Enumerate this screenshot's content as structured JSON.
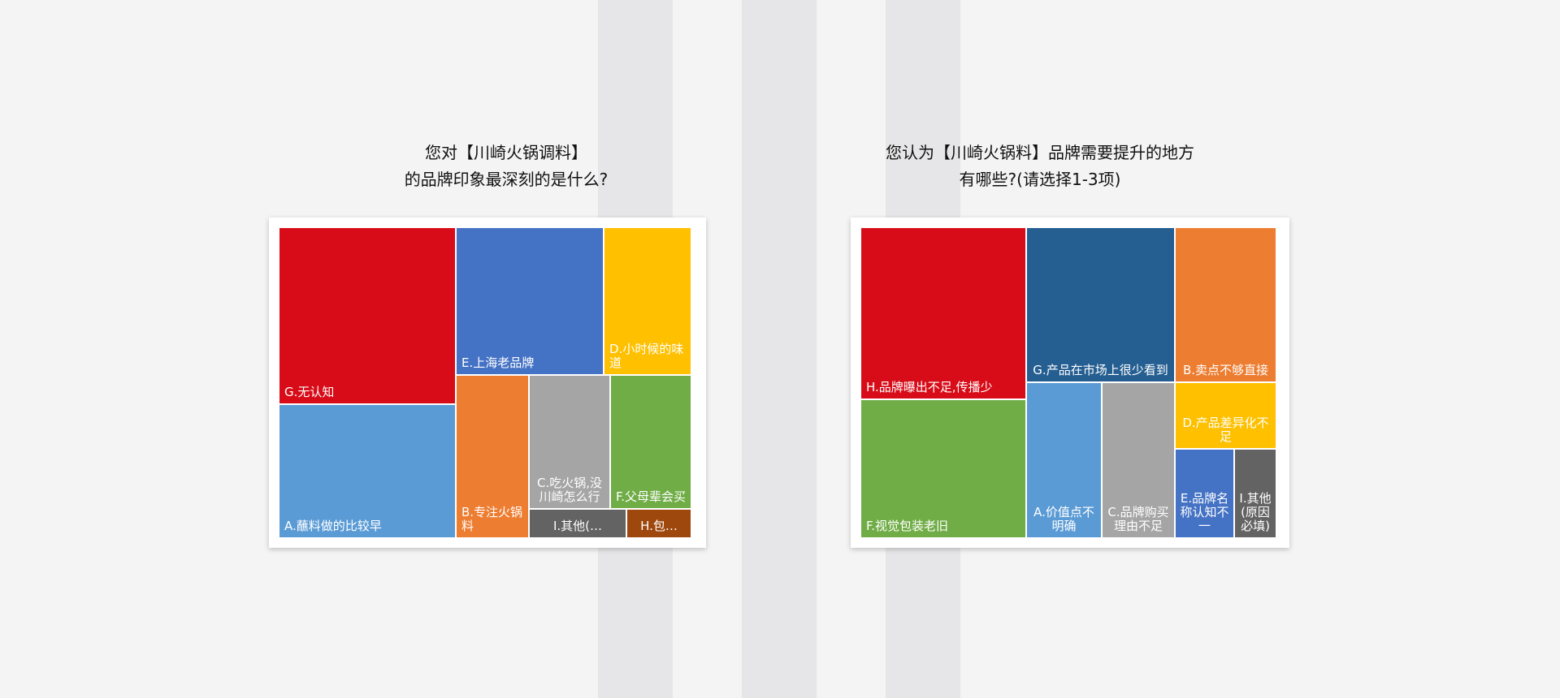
{
  "page": {
    "background": "#f4f4f4",
    "stripe_color": "#e6e6e8"
  },
  "chart_data": [
    {
      "type": "treemap",
      "title": "您对【川崎火锅调料】\n的品牌印象最深刻的是什么?",
      "categories": [
        "G.无认知",
        "A.蘸料做的比较早",
        "E.上海老品牌",
        "D.小时候的味道",
        "B.专注火锅料",
        "C.吃火锅,没川崎怎么行",
        "F.父母辈会买",
        "I.其他(…",
        "H.包…"
      ],
      "values": [
        22.1,
        14.6,
        11.9,
        6.9,
        6.2,
        6.2,
        6.3,
        2.2,
        1.6
      ],
      "tile_colors": [
        "#d80c18",
        "#5b9bd5",
        "#4472c4",
        "#ffc000",
        "#ed7d31",
        "#a5a5a5",
        "#70ad47",
        "#636363",
        "#9e480e"
      ]
    },
    {
      "type": "treemap",
      "title": "您认为【川崎火锅料】品牌需要提升的地方\n有哪些?(请选择1-3项)",
      "categories": [
        "H.品牌曝出不足,传播少",
        "F.视觉包装老旧",
        "G.产品在市场上很少看到",
        "A.价值点不明确",
        "C.品牌购买理由不足",
        "B.卖点不够直接",
        "D.产品差异化不足",
        "E.品牌名称认知不一",
        "I.其他(原因必填)"
      ],
      "values": [
        20.2,
        17.3,
        18.1,
        8.8,
        8.8,
        9.7,
        4.6,
        3.8,
        3.3
      ],
      "tile_colors": [
        "#d80c18",
        "#70ad47",
        "#255e91",
        "#5b9bd5",
        "#a5a5a5",
        "#ed7d31",
        "#ffc000",
        "#4472c4",
        "#636363"
      ]
    }
  ]
}
